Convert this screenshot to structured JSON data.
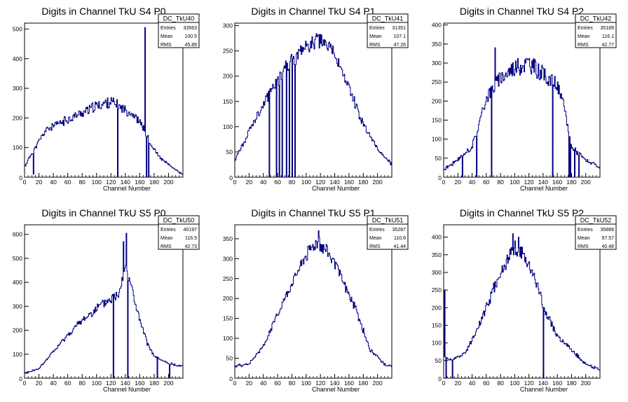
{
  "chart_data": [
    {
      "type": "histogram",
      "title": "Digits in Channel TkU S4 P0",
      "xlabel": "Channel Number",
      "xlim": [
        0,
        220
      ],
      "ylim": [
        0,
        520
      ],
      "xticks": [
        0,
        20,
        40,
        60,
        80,
        100,
        120,
        140,
        160,
        180,
        200
      ],
      "yticks": [
        100,
        200,
        300,
        400,
        500
      ],
      "stats": {
        "name": "DC_TkU40",
        "rows": [
          {
            "label": "Entries",
            "value": "33563"
          },
          {
            "label": "Mean",
            "value": "100.5"
          },
          {
            "label": "RMS",
            "value": "45.89"
          }
        ]
      },
      "profile": [
        [
          0,
          35
        ],
        [
          10,
          80
        ],
        [
          30,
          160
        ],
        [
          60,
          195
        ],
        [
          100,
          240
        ],
        [
          120,
          255
        ],
        [
          130,
          240
        ],
        [
          150,
          215
        ],
        [
          165,
          170
        ],
        [
          175,
          110
        ],
        [
          190,
          60
        ],
        [
          210,
          25
        ],
        [
          220,
          10
        ]
      ],
      "spikes": [
        [
          12,
          10
        ],
        [
          129,
          0
        ],
        [
          169,
          0
        ],
        [
          167,
          505
        ],
        [
          172,
          0
        ]
      ],
      "seed": 11,
      "noise": 0.07
    },
    {
      "type": "histogram",
      "title": "Digits in Channel TkU S4 P1",
      "xlabel": "Channel Number",
      "xlim": [
        0,
        220
      ],
      "ylim": [
        0,
        305
      ],
      "xticks": [
        0,
        20,
        40,
        60,
        80,
        100,
        120,
        140,
        160,
        180,
        200
      ],
      "yticks": [
        50,
        100,
        150,
        200,
        250,
        300
      ],
      "stats": {
        "name": "DC_TkU41",
        "rows": [
          {
            "label": "Entries",
            "value": "31351"
          },
          {
            "label": "Mean",
            "value": "107.1"
          },
          {
            "label": "RMS",
            "value": "47.26"
          }
        ]
      },
      "profile": [
        [
          0,
          35
        ],
        [
          10,
          60
        ],
        [
          30,
          120
        ],
        [
          50,
          170
        ],
        [
          70,
          215
        ],
        [
          90,
          245
        ],
        [
          110,
          268
        ],
        [
          120,
          270
        ],
        [
          140,
          245
        ],
        [
          160,
          175
        ],
        [
          180,
          105
        ],
        [
          200,
          55
        ],
        [
          220,
          25
        ]
      ],
      "spikes": [
        [
          48,
          0
        ],
        [
          58,
          0
        ],
        [
          62,
          0
        ],
        [
          66,
          0
        ],
        [
          72,
          0
        ],
        [
          76,
          0
        ],
        [
          80,
          0
        ],
        [
          84,
          0
        ]
      ],
      "seed": 21,
      "noise": 0.06
    },
    {
      "type": "histogram",
      "title": "Digits in Channel TkU S4 P2",
      "xlabel": "Channel Number",
      "xlim": [
        0,
        220
      ],
      "ylim": [
        0,
        405
      ],
      "xticks": [
        0,
        20,
        40,
        60,
        80,
        100,
        120,
        140,
        160,
        180,
        200
      ],
      "yticks": [
        50,
        100,
        150,
        200,
        250,
        300,
        350,
        400
      ],
      "stats": {
        "name": "DC_TkU42",
        "rows": [
          {
            "label": "Entries",
            "value": "35189"
          },
          {
            "label": "Mean",
            "value": "116.1"
          },
          {
            "label": "RMS",
            "value": "42.77"
          }
        ]
      },
      "profile": [
        [
          0,
          20
        ],
        [
          20,
          45
        ],
        [
          40,
          80
        ],
        [
          50,
          140
        ],
        [
          60,
          210
        ],
        [
          80,
          260
        ],
        [
          100,
          290
        ],
        [
          120,
          300
        ],
        [
          140,
          270
        ],
        [
          160,
          240
        ],
        [
          170,
          180
        ],
        [
          180,
          80
        ],
        [
          200,
          45
        ],
        [
          220,
          25
        ]
      ],
      "spikes": [
        [
          26,
          0
        ],
        [
          46,
          0
        ],
        [
          67,
          0
        ],
        [
          72,
          340
        ],
        [
          153,
          0
        ],
        [
          176,
          0
        ],
        [
          178,
          0
        ],
        [
          184,
          0
        ],
        [
          190,
          0
        ]
      ],
      "seed": 31,
      "noise": 0.08
    },
    {
      "type": "histogram",
      "title": "Digits in Channel TkU S5 P0",
      "xlabel": "Channel Number",
      "xlim": [
        0,
        220
      ],
      "ylim": [
        0,
        640
      ],
      "xticks": [
        0,
        20,
        40,
        60,
        80,
        100,
        120,
        140,
        160,
        180,
        200
      ],
      "yticks": [
        100,
        200,
        300,
        400,
        500,
        600
      ],
      "stats": {
        "name": "DC_TkU50",
        "rows": [
          {
            "label": "Entries",
            "value": "40197"
          },
          {
            "label": "Mean",
            "value": "116.5"
          },
          {
            "label": "RMS",
            "value": "42.73"
          }
        ]
      },
      "profile": [
        [
          0,
          20
        ],
        [
          20,
          40
        ],
        [
          40,
          110
        ],
        [
          60,
          180
        ],
        [
          80,
          240
        ],
        [
          100,
          290
        ],
        [
          120,
          330
        ],
        [
          130,
          350
        ],
        [
          140,
          470
        ],
        [
          145,
          430
        ],
        [
          150,
          360
        ],
        [
          160,
          240
        ],
        [
          170,
          150
        ],
        [
          180,
          90
        ],
        [
          200,
          60
        ],
        [
          220,
          50
        ]
      ],
      "spikes": [
        [
          123,
          0
        ],
        [
          137,
          570
        ],
        [
          141,
          605
        ],
        [
          143,
          0
        ],
        [
          184,
          0
        ],
        [
          201,
          0
        ]
      ],
      "seed": 41,
      "noise": 0.06
    },
    {
      "type": "histogram",
      "title": "Digits in Channel TkU S5 P1",
      "xlabel": "Channel Number",
      "xlim": [
        0,
        220
      ],
      "ylim": [
        0,
        385
      ],
      "xticks": [
        0,
        20,
        40,
        60,
        80,
        100,
        120,
        140,
        160,
        180,
        200
      ],
      "yticks": [
        50,
        100,
        150,
        200,
        250,
        300,
        350
      ],
      "stats": {
        "name": "DC_TkU51",
        "rows": [
          {
            "label": "Entries",
            "value": "35287"
          },
          {
            "label": "Mean",
            "value": "110.6"
          },
          {
            "label": "RMS",
            "value": "41.44"
          }
        ]
      },
      "profile": [
        [
          0,
          30
        ],
        [
          20,
          35
        ],
        [
          40,
          80
        ],
        [
          60,
          160
        ],
        [
          80,
          240
        ],
        [
          100,
          310
        ],
        [
          115,
          345
        ],
        [
          130,
          320
        ],
        [
          150,
          250
        ],
        [
          170,
          170
        ],
        [
          190,
          70
        ],
        [
          210,
          35
        ],
        [
          220,
          30
        ]
      ],
      "spikes": [
        [
          117,
          370
        ]
      ],
      "seed": 51,
      "noise": 0.05
    },
    {
      "type": "histogram",
      "title": "Digits in Channel TkU S5 P2",
      "xlabel": "Channel Number",
      "xlim": [
        0,
        220
      ],
      "ylim": [
        0,
        435
      ],
      "xticks": [
        0,
        20,
        40,
        60,
        80,
        100,
        120,
        140,
        160,
        180,
        200
      ],
      "yticks": [
        50,
        100,
        150,
        200,
        250,
        300,
        350,
        400
      ],
      "stats": {
        "name": "DC_TkU52",
        "rows": [
          {
            "label": "Entries",
            "value": "35889"
          },
          {
            "label": "Mean",
            "value": "97.57"
          },
          {
            "label": "RMS",
            "value": "40.48"
          }
        ]
      },
      "profile": [
        [
          0,
          60
        ],
        [
          10,
          50
        ],
        [
          30,
          70
        ],
        [
          50,
          150
        ],
        [
          70,
          250
        ],
        [
          90,
          340
        ],
        [
          100,
          370
        ],
        [
          110,
          350
        ],
        [
          130,
          280
        ],
        [
          140,
          200
        ],
        [
          160,
          120
        ],
        [
          180,
          80
        ],
        [
          200,
          40
        ],
        [
          220,
          25
        ]
      ],
      "spikes": [
        [
          1,
          250
        ],
        [
          3,
          0
        ],
        [
          12,
          0
        ],
        [
          97,
          410
        ],
        [
          105,
          400
        ],
        [
          140,
          0
        ]
      ],
      "seed": 61,
      "noise": 0.06
    }
  ]
}
